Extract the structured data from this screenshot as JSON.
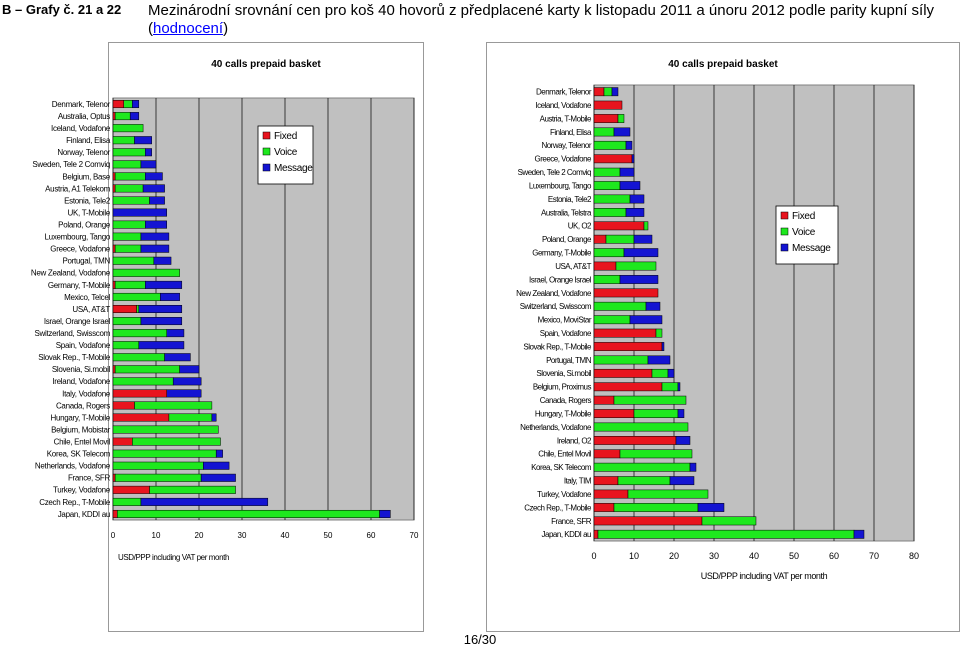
{
  "header": {
    "label": "B – Grafy č. 21 a 22",
    "title": "Mezinárodní srovnání cen pro koš 40 hovorů z předplacené karty k listopadu 2011 a únoru 2012 podle parity kupní síly",
    "link_open": "(",
    "link_text": "hodnocení",
    "link_close": ")"
  },
  "footer": {
    "page": "16/30"
  },
  "colors": {
    "fixed": "#e8141e",
    "voice": "#1ee81e",
    "message": "#1414d2",
    "plot_bg": "#c0c0c0"
  },
  "chart_data": [
    {
      "type": "bar",
      "orientation": "horizontal",
      "stacked": true,
      "title": "40 calls prepaid basket",
      "xlabel": "USD/PPP including VAT per month",
      "xlim": [
        0,
        70
      ],
      "xticks": [
        0,
        10,
        20,
        30,
        40,
        50,
        60,
        70
      ],
      "legend_position": "top-right",
      "categories": [
        "Denmark, Telenor",
        "Australia, Optus",
        "Iceland, Vodafone",
        "Finland, Elisa",
        "Norway, Telenor",
        "Sweden, Tele 2 Comviq",
        "Belgium, Base",
        "Austria, A1 Telekom",
        "Estonia, Tele2",
        "UK, T-Mobile",
        "Poland, Orange",
        "Luxembourg, Tango",
        "Greece, Vodafone",
        "Portugal, TMN",
        "New Zealand, Vodafone",
        "Germany, T-Mobile",
        "Mexico, Telcel",
        "USA, AT&T",
        "Israel, Orange Israel",
        "Switzerland, Swisscom",
        "Spain, Vodafone",
        "Slovak Rep., T-Mobile",
        "Slovenia, Si.mobil",
        "Ireland, Vodafone",
        "Italy, Vodafone",
        "Canada, Rogers",
        "Hungary, T-Mobile",
        "Belgium, Mobistar",
        "Chile, Entel Movil",
        "Korea, SK Telecom",
        "Netherlands, Vodafone",
        "France, SFR",
        "Turkey, Vodafone",
        "Czech Rep., T-Mobile",
        "Japan, KDDI au"
      ],
      "series": [
        {
          "name": "Fixed",
          "values": [
            2.5,
            0.5,
            0,
            0,
            0,
            0,
            0.5,
            0.5,
            0,
            0,
            0,
            0,
            0.5,
            0,
            0,
            0.5,
            0,
            5.5,
            0,
            0,
            0,
            0,
            0.5,
            0,
            12.5,
            5,
            13,
            0,
            4.5,
            0,
            0,
            0.5,
            8.5,
            0,
            1
          ]
        },
        {
          "name": "Voice",
          "values": [
            2,
            3.5,
            7,
            5,
            7.5,
            6.5,
            7,
            6.5,
            8.5,
            0,
            7.5,
            6.5,
            6,
            9.5,
            15.5,
            7,
            11,
            0.5,
            6.5,
            12.5,
            6,
            12,
            15,
            14,
            0,
            18,
            10,
            24.5,
            20.5,
            24,
            21,
            20,
            20,
            6.5,
            61
          ]
        },
        {
          "name": "Message",
          "values": [
            1.5,
            2,
            0,
            4,
            1.5,
            3.5,
            4,
            5,
            3.5,
            12.5,
            5,
            6.5,
            6.5,
            4,
            0,
            8.5,
            4.5,
            10,
            9.5,
            4,
            10.5,
            6,
            4.5,
            6.5,
            8,
            0,
            1,
            0,
            0,
            1.5,
            6,
            8,
            0,
            29.5,
            2.5
          ]
        }
      ]
    },
    {
      "type": "bar",
      "orientation": "horizontal",
      "stacked": true,
      "title": "40 calls prepaid basket",
      "xlabel": "USD/PPP including VAT per month",
      "xlim": [
        0,
        80
      ],
      "xticks": [
        0,
        10,
        20,
        30,
        40,
        50,
        60,
        70,
        80
      ],
      "legend_position": "top-right",
      "categories": [
        "Denmark, Telenor",
        "Iceland, Vodafone",
        "Austria, T-Mobile",
        "Finland, Elisa",
        "Norway, Telenor",
        "Greece, Vodafone",
        "Sweden, Tele 2 Comviq",
        "Luxembourg, Tango",
        "Estonia, Tele2",
        "Australia, Telstra",
        "UK, O2",
        "Poland, Orange",
        "Germany, T-Mobile",
        "USA, AT&T",
        "Israel, Orange Israel",
        "New Zealand, Vodafone",
        "Switzerland, Swisscom",
        "Mexico, MoviStar",
        "Spain, Vodafone",
        "Slovak Rep., T-Mobile",
        "Portugal, TMN",
        "Slovenia, Si.mobil",
        "Belgium, Proximus",
        "Canada, Rogers",
        "Hungary, T-Mobile",
        "Netherlands, Vodafone",
        "Ireland, O2",
        "Chile, Entel Movil",
        "Korea, SK Telecom",
        "Italy, TIM",
        "Turkey, Vodafone",
        "Czech Rep., T-Mobile",
        "France, SFR",
        "Japan, KDDI au"
      ],
      "series": [
        {
          "name": "Fixed",
          "values": [
            2.5,
            7,
            6,
            0,
            0,
            9.5,
            0,
            0,
            0,
            0,
            12.5,
            3,
            0,
            5.5,
            0,
            16,
            0,
            0,
            15.5,
            17,
            0,
            14.5,
            17,
            5,
            10,
            0,
            20.5,
            6.5,
            0,
            6,
            8.5,
            5,
            27,
            1
          ]
        },
        {
          "name": "Voice",
          "values": [
            2,
            0,
            1.5,
            5,
            8,
            0,
            6.5,
            6.5,
            9,
            8,
            1,
            7,
            7.5,
            10,
            6.5,
            0,
            13,
            9,
            1.5,
            0,
            13.5,
            4,
            4,
            18,
            11,
            23.5,
            0,
            18,
            24,
            13,
            20,
            21,
            13.5,
            64
          ]
        },
        {
          "name": "Message",
          "values": [
            1.5,
            0,
            0,
            4,
            1.5,
            0.5,
            3.5,
            5,
            3.5,
            4.5,
            0,
            4.5,
            8.5,
            0,
            9.5,
            0,
            3.5,
            8,
            0,
            0.5,
            5.5,
            1.5,
            0.5,
            0,
            1.5,
            0,
            3.5,
            0,
            1.5,
            6,
            0,
            6.5,
            0,
            2.5
          ]
        }
      ]
    }
  ]
}
